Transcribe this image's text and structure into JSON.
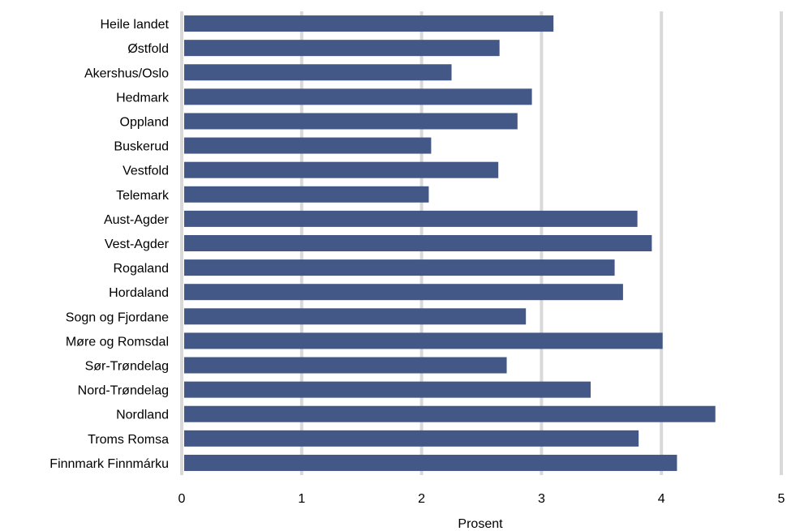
{
  "chart_data": {
    "type": "bar",
    "orientation": "horizontal",
    "categories": [
      "Heile landet",
      "Østfold",
      "Akershus/Oslo",
      "Hedmark",
      "Oppland",
      "Buskerud",
      "Vestfold",
      "Telemark",
      "Aust-Agder",
      "Vest-Agder",
      "Rogaland",
      "Hordaland",
      "Sogn og Fjordane",
      "Møre og Romsdal",
      "Sør-Trøndelag",
      "Nord-Trøndelag",
      "Nordland",
      "Troms Romsa",
      "Finnmark Finnmárku"
    ],
    "values": [
      3.1,
      2.65,
      2.25,
      2.92,
      2.8,
      2.08,
      2.64,
      2.06,
      3.8,
      3.92,
      3.61,
      3.68,
      2.87,
      4.01,
      2.71,
      3.41,
      4.45,
      3.81,
      4.13
    ],
    "title": "",
    "xlabel": "Prosent",
    "ylabel": "",
    "xlim": [
      0,
      5
    ],
    "xticks": [
      0,
      1,
      2,
      3,
      4,
      5
    ],
    "xtick_labels": [
      "0",
      "1",
      "2",
      "3",
      "4",
      "5"
    ],
    "grid": "vertical",
    "bar_color": "#435887",
    "grid_color": "#d9d9d9"
  }
}
